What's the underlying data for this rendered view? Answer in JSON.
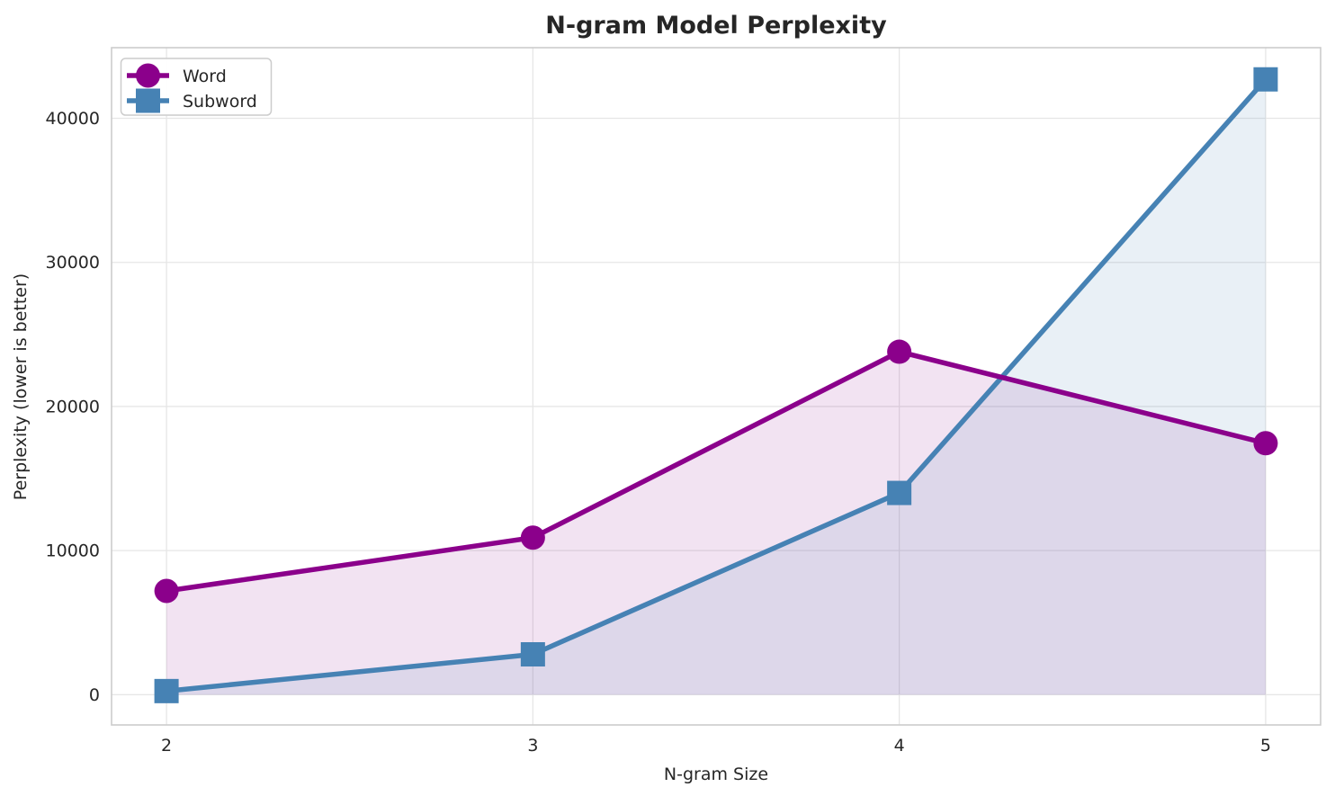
{
  "chart_data": {
    "type": "line",
    "title": "N-gram Model Perplexity",
    "xlabel": "N-gram Size",
    "ylabel": "Perplexity (lower is better)",
    "x": [
      2,
      3,
      4,
      5
    ],
    "x_tick_labels": [
      "2",
      "3",
      "4",
      "5"
    ],
    "y_ticks": [
      0,
      10000,
      20000,
      30000,
      40000
    ],
    "y_tick_labels": [
      "0",
      "10000",
      "20000",
      "30000",
      "40000"
    ],
    "xlim": [
      1.85,
      5.15
    ],
    "ylim": [
      -2100,
      44900
    ],
    "grid": true,
    "legend_position": "upper left",
    "series": [
      {
        "name": "Word",
        "marker": "circle",
        "color": "#8B008B",
        "fill_opacity": 0.11,
        "values": [
          7200,
          10900,
          23800,
          17450
        ]
      },
      {
        "name": "Subword",
        "marker": "square",
        "color": "#4682B4",
        "fill_opacity": 0.12,
        "values": [
          250,
          2800,
          14000,
          42700
        ]
      }
    ],
    "colors": {
      "grid": "#E6E6E6",
      "spine": "#CCCCCC",
      "text": "#262626",
      "legend_border": "#CCCCCC",
      "legend_bg": "#FFFFFF"
    }
  }
}
